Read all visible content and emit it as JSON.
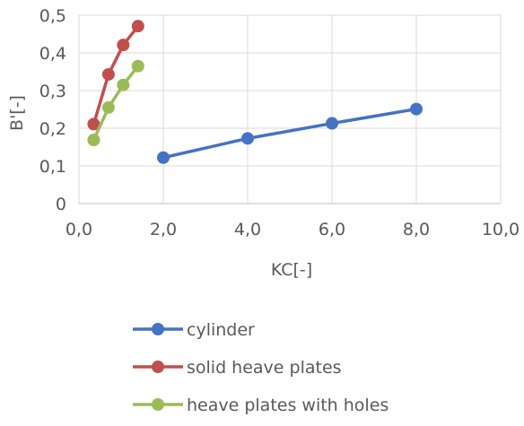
{
  "chart_data": {
    "type": "line",
    "title": "",
    "xlabel": "KC[-]",
    "ylabel": "B'[-]",
    "xlim": [
      0,
      10
    ],
    "ylim": [
      0,
      0.5
    ],
    "x_ticks": [
      0,
      2,
      4,
      6,
      8,
      10
    ],
    "y_ticks": [
      0,
      0.1,
      0.2,
      0.3,
      0.4,
      0.5
    ],
    "x_tick_labels": [
      "0,0",
      "2,0",
      "4,0",
      "6,0",
      "8,0",
      "10,0"
    ],
    "y_tick_labels": [
      "0",
      "0,1",
      "0,2",
      "0,3",
      "0,4",
      "0,5"
    ],
    "grid": true,
    "legend_position": "bottom",
    "series": [
      {
        "name": "cylinder",
        "color": "#4472C4",
        "x": [
          2.0,
          4.0,
          6.0,
          8.0
        ],
        "y": [
          0.122,
          0.173,
          0.213,
          0.251
        ]
      },
      {
        "name": "solid heave plates",
        "color": "#C0504D",
        "x": [
          0.35,
          0.7,
          1.05,
          1.4
        ],
        "y": [
          0.211,
          0.343,
          0.421,
          0.471
        ]
      },
      {
        "name": "heave plates with holes",
        "color": "#9BBB59",
        "x": [
          0.35,
          0.7,
          1.05,
          1.4
        ],
        "y": [
          0.169,
          0.255,
          0.315,
          0.365
        ]
      }
    ]
  }
}
